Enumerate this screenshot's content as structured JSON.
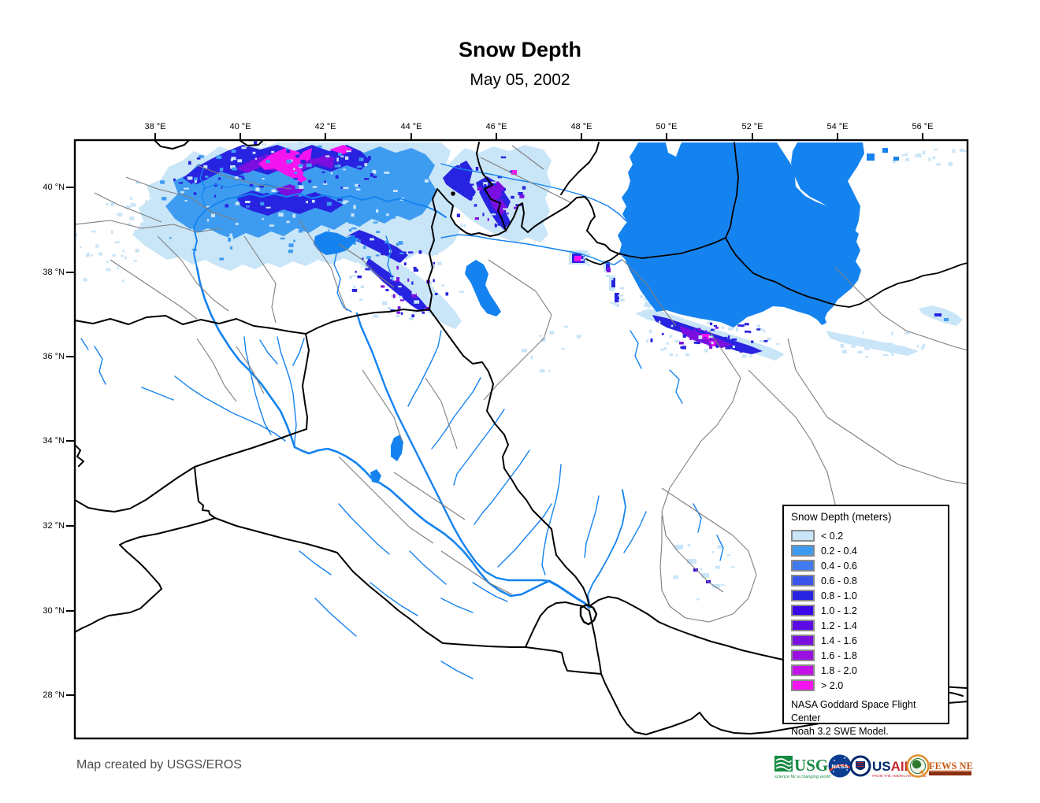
{
  "title": "Snow Depth",
  "subtitle": "May 05, 2002",
  "map": {
    "lon_ticks": [
      "38 °E",
      "40 °E",
      "42 °E",
      "44 °E",
      "46 °E",
      "48 °E",
      "50 °E",
      "52 °E",
      "54 °E",
      "56 °E"
    ],
    "lat_ticks": [
      "40 °N",
      "38 °N",
      "36 °N",
      "34 °N",
      "32 °N",
      "30 °N",
      "28 °N"
    ]
  },
  "legend": {
    "title": "Snow Depth (meters)",
    "entries": [
      {
        "label": "< 0.2",
        "color": "#c9e5f8"
      },
      {
        "label": "0.2 - 0.4",
        "color": "#3e9cf0"
      },
      {
        "label": "0.4 - 0.6",
        "color": "#4179ef"
      },
      {
        "label": "0.6 - 0.8",
        "color": "#3a55ea"
      },
      {
        "label": "0.8 - 1.0",
        "color": "#2823e0"
      },
      {
        "label": "1.0 - 1.2",
        "color": "#3c07e8"
      },
      {
        "label": "1.2 - 1.4",
        "color": "#5c0be4"
      },
      {
        "label": "1.4 - 1.6",
        "color": "#7b0fe0"
      },
      {
        "label": "1.6 - 1.8",
        "color": "#9a10e0"
      },
      {
        "label": "1.8 - 2.0",
        "color": "#c312e9"
      },
      {
        "label": "> 2.0",
        "color": "#f414ef"
      }
    ],
    "attribution": [
      "NASA Goddard Space Flight Center",
      "Noah 3.2 SWE Model."
    ]
  },
  "footer": {
    "credit": "Map created by USGS/EROS",
    "logos": {
      "usgs": {
        "text": "USGS",
        "tagline": "science for a changing world"
      },
      "nasa": {
        "text": "NASA"
      },
      "usaid": {
        "text_us": "US",
        "text_aid": "AID",
        "tagline": "FROM THE AMERICAN PEOPLE"
      },
      "fewsnet": {
        "text": "FEWS NET"
      }
    }
  },
  "colors": {
    "water": "#1583ef",
    "border": "#000000",
    "admin": "#7e7e7e"
  }
}
